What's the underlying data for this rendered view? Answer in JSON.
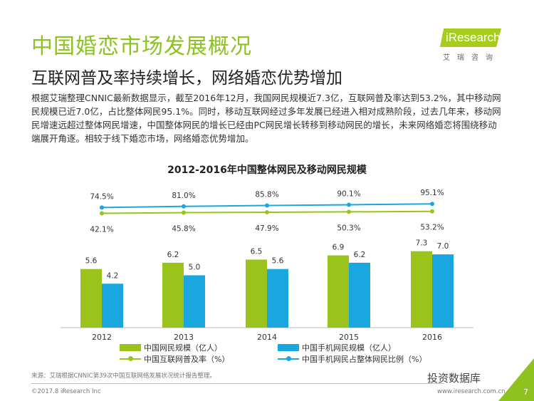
{
  "header": {
    "title": "中国婚恋市场发展概况",
    "subtitle": "互联网普及率持续增长，网络婚恋优势增加",
    "logo": "iResearch",
    "logo_cn": "艾瑞咨询"
  },
  "paragraph": "根据艾瑞整理CNNIC最新数据显示，截至2016年12月，我国网民规模近7.3亿，互联网普及率达到53.2%，其中移动网民规模已近7.0亿，占比整体网民95.1%。同时，移动互联网经过多年发展已经进入相对成熟阶段，过去几年来，移动网民增速远超过整体网民增速，中国整体网民的增长已经由PC网民增长转移到移动网民的增长，未来网络婚恋将围绕移动端展开角逐。相较于线下婚恋市场，网络婚恋优势增加。",
  "chart_data": {
    "type": "bar",
    "title": "2012-2016年中国整体网民及移动网民规模",
    "categories": [
      "2012",
      "2013",
      "2014",
      "2015",
      "2016"
    ],
    "series": [
      {
        "name": "中国网民规模（亿人）",
        "kind": "bar",
        "color": "#9ac31c",
        "values": [
          5.6,
          6.2,
          6.5,
          6.9,
          7.3
        ]
      },
      {
        "name": "中国手机网民规模（亿人）",
        "kind": "bar",
        "color": "#1aa7e0",
        "values": [
          4.2,
          5.0,
          5.6,
          6.2,
          7.0
        ]
      },
      {
        "name": "中国互联网普及率（%）",
        "kind": "line",
        "color": "#9ac31c",
        "values": [
          42.1,
          45.8,
          47.9,
          50.3,
          53.2
        ]
      },
      {
        "name": "中国手机网民占整体网民比例（%）",
        "kind": "line",
        "color": "#1aa7e0",
        "values": [
          74.5,
          81.0,
          85.8,
          90.1,
          95.1
        ]
      }
    ],
    "legend": "bottom",
    "grid": false
  },
  "footer": {
    "source": "来源：艾瑞根据CNNIC第39次中国互联网络发展状况统计报告整理。",
    "copyright": "©2017.8 iResearch Inc",
    "url": "www.iresearch.com.cn",
    "watermark": "投资数据库",
    "page": "7"
  }
}
